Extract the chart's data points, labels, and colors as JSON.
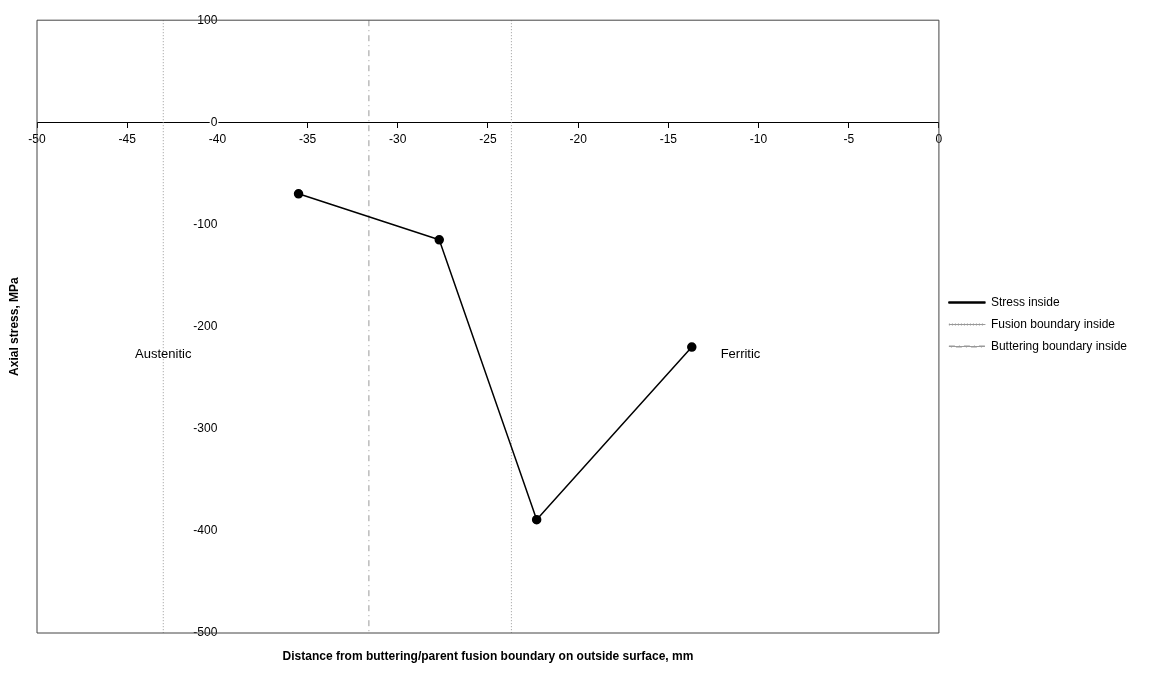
{
  "chart_data": {
    "type": "line",
    "xlabel": "Distance from buttering/parent fusion boundary on outside surface, mm",
    "ylabel": "Axial stress, MPa",
    "series": [
      {
        "name": "Stress inside",
        "color": "#000000",
        "x": [
          -35.5,
          -27.7,
          -22.3,
          -13.7
        ],
        "values": [
          -70,
          -115,
          -389,
          -220
        ],
        "marker": "circle",
        "line_style": "solid"
      },
      {
        "name": "Fusion boundary inside",
        "color": "#999999",
        "x": [
          -43,
          -43,
          -33,
          -23.7,
          -23.7
        ],
        "values": [
          100,
          -500,
          null,
          100,
          -500
        ],
        "marker": "none",
        "line_style": "dotted"
      },
      {
        "name": "Buttering boundary inside",
        "color": "#999999",
        "x": [
          -31.6,
          -31.6
        ],
        "values": [
          100,
          -500
        ],
        "marker": "none",
        "line_style": "dashed"
      }
    ],
    "xlim": [
      -50,
      0
    ],
    "xticks": [
      -50,
      -45,
      -40,
      -35,
      -30,
      -25,
      -20,
      -15,
      -10,
      -5,
      0
    ],
    "ylim": [
      -500,
      100
    ],
    "yticks": [
      -500,
      -400,
      -300,
      -200,
      -100,
      0,
      100
    ],
    "annotations": [
      "Austenitic",
      "Ferritic"
    ],
    "grid": false,
    "legend": "right"
  }
}
